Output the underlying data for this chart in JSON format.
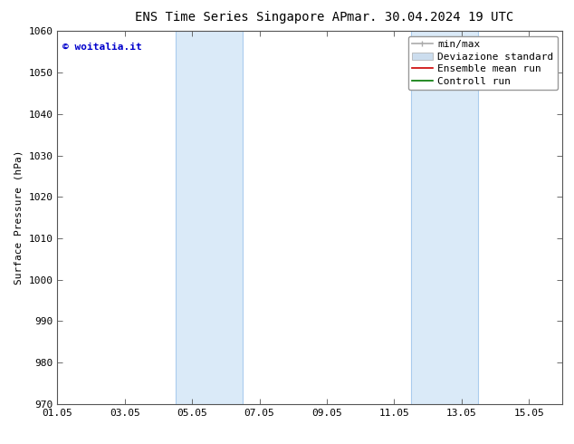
{
  "title_left": "ENS Time Series Singapore AP",
  "title_right": "mar. 30.04.2024 19 UTC",
  "ylabel": "Surface Pressure (hPa)",
  "xlim": [
    0,
    15
  ],
  "ylim": [
    970,
    1060
  ],
  "yticks": [
    970,
    980,
    990,
    1000,
    1010,
    1020,
    1030,
    1040,
    1050,
    1060
  ],
  "xtick_labels": [
    "01.05",
    "03.05",
    "05.05",
    "07.05",
    "09.05",
    "11.05",
    "13.05",
    "15.05"
  ],
  "xtick_positions": [
    0,
    2,
    4,
    6,
    8,
    10,
    12,
    14
  ],
  "shaded_bands": [
    {
      "x_start": 3.5,
      "x_end": 5.5
    },
    {
      "x_start": 10.5,
      "x_end": 12.5
    }
  ],
  "band_color": "#daeaf8",
  "band_edge_color": "#aaccee",
  "watermark_text": "© woitalia.it",
  "watermark_color": "#0000cc",
  "legend_entries": [
    {
      "label": "min/max",
      "color": "#aaaaaa",
      "lw": 1.2
    },
    {
      "label": "Deviazione standard",
      "color": "#ccddee",
      "lw": 7
    },
    {
      "label": "Ensemble mean run",
      "color": "#cc0000",
      "lw": 1.2
    },
    {
      "label": "Controll run",
      "color": "#007700",
      "lw": 1.2
    }
  ],
  "bg_color": "#ffffff",
  "axes_bg": "#ffffff",
  "font_size": 8,
  "title_font_size": 10,
  "tick_font_size": 8
}
